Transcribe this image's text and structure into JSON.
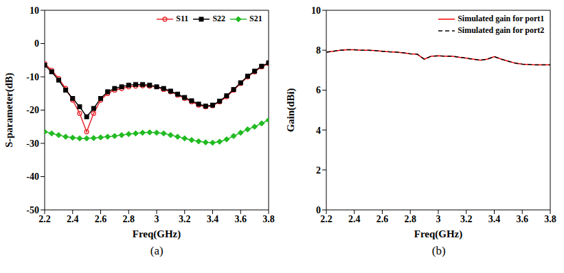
{
  "chart_data": [
    {
      "type": "line",
      "title": "(a)",
      "x_label": "Freq(GHz)",
      "y_label": "S-parameter(dB)",
      "x": [
        2.2,
        2.25,
        2.3,
        2.35,
        2.4,
        2.45,
        2.5,
        2.55,
        2.6,
        2.65,
        2.7,
        2.75,
        2.8,
        2.85,
        2.9,
        2.95,
        3.0,
        3.05,
        3.1,
        3.15,
        3.2,
        3.25,
        3.3,
        3.35,
        3.4,
        3.45,
        3.5,
        3.55,
        3.6,
        3.65,
        3.7,
        3.75,
        3.8
      ],
      "series": [
        {
          "name": "S11",
          "color": "#e8262a",
          "marker": "circle",
          "line_style": "solid",
          "values": [
            -6,
            -8,
            -10.5,
            -13.5,
            -17,
            -21,
            -26.5,
            -21,
            -17,
            -15,
            -14,
            -13.5,
            -13,
            -12.8,
            -12.7,
            -12.8,
            -13,
            -13.8,
            -14.5,
            -15.5,
            -16.5,
            -17.5,
            -18.5,
            -19,
            -18.7,
            -17.5,
            -16,
            -14,
            -12,
            -10,
            -8.5,
            -7,
            -6
          ]
        },
        {
          "name": "S22",
          "color": "#000000",
          "marker": "square",
          "line_style": "solid",
          "values": [
            -6.5,
            -8.5,
            -11,
            -14,
            -16.5,
            -19,
            -22,
            -19.5,
            -16.5,
            -14.5,
            -13.5,
            -13,
            -12.5,
            -12.3,
            -12.3,
            -12.5,
            -13,
            -13.5,
            -14.3,
            -15.2,
            -16.2,
            -17.2,
            -18.2,
            -18.8,
            -18.5,
            -17.3,
            -15.7,
            -13.8,
            -11.8,
            -9.8,
            -8.3,
            -6.8,
            -5.8
          ]
        },
        {
          "name": "S21",
          "color": "#22bb22",
          "marker": "diamond",
          "line_style": "solid",
          "values": [
            -26.5,
            -27,
            -27.5,
            -28,
            -28.3,
            -28.5,
            -28.5,
            -28.4,
            -28.2,
            -28,
            -27.8,
            -27.5,
            -27.2,
            -27,
            -26.8,
            -26.7,
            -26.8,
            -27,
            -27.5,
            -28,
            -28.5,
            -29,
            -29.4,
            -29.7,
            -29.8,
            -29.5,
            -28.8,
            -27.8,
            -26.8,
            -25.8,
            -25,
            -24,
            -23
          ]
        }
      ],
      "xlim": [
        2.2,
        3.8
      ],
      "xticks": [
        2.2,
        2.4,
        2.6,
        2.8,
        3,
        3.2,
        3.4,
        3.6,
        3.8
      ],
      "ylim": [
        -50,
        10
      ],
      "yticks": [
        -50,
        -40,
        -30,
        -20,
        -10,
        0,
        10
      ],
      "grid": false,
      "legend": "upper right"
    },
    {
      "type": "line",
      "title": "(b)",
      "x_label": "Freq(GHz)",
      "y_label": "Gain(dBi)",
      "x": [
        2.2,
        2.25,
        2.3,
        2.35,
        2.4,
        2.45,
        2.5,
        2.55,
        2.6,
        2.65,
        2.7,
        2.75,
        2.8,
        2.85,
        2.9,
        2.95,
        3.0,
        3.05,
        3.1,
        3.15,
        3.2,
        3.25,
        3.3,
        3.35,
        3.4,
        3.45,
        3.5,
        3.55,
        3.6,
        3.65,
        3.7,
        3.75,
        3.8
      ],
      "series": [
        {
          "name": "Simulated gain for port1",
          "color": "#ff0000",
          "marker": "none",
          "line_style": "solid",
          "values": [
            7.9,
            7.95,
            8.0,
            8.02,
            8.02,
            8.0,
            8.0,
            7.98,
            7.95,
            7.92,
            7.9,
            7.87,
            7.82,
            7.8,
            7.55,
            7.7,
            7.72,
            7.7,
            7.7,
            7.65,
            7.6,
            7.55,
            7.5,
            7.55,
            7.68,
            7.55,
            7.45,
            7.35,
            7.3,
            7.28,
            7.27,
            7.27,
            7.27
          ]
        },
        {
          "name": "Simulated gain for port2",
          "color": "#000000",
          "marker": "none",
          "line_style": "dashed",
          "values": [
            7.9,
            7.95,
            8.0,
            8.02,
            8.02,
            8.0,
            8.0,
            7.98,
            7.95,
            7.92,
            7.9,
            7.87,
            7.82,
            7.8,
            7.55,
            7.7,
            7.72,
            7.7,
            7.7,
            7.65,
            7.6,
            7.55,
            7.5,
            7.55,
            7.68,
            7.55,
            7.45,
            7.35,
            7.3,
            7.28,
            7.27,
            7.27,
            7.27
          ]
        }
      ],
      "xlim": [
        2.2,
        3.8
      ],
      "xticks": [
        2.2,
        2.4,
        2.6,
        2.8,
        3,
        3.2,
        3.4,
        3.6,
        3.8
      ],
      "ylim": [
        0,
        10
      ],
      "yticks": [
        0,
        2,
        4,
        6,
        8,
        10
      ],
      "grid": false,
      "legend": "upper right"
    }
  ]
}
